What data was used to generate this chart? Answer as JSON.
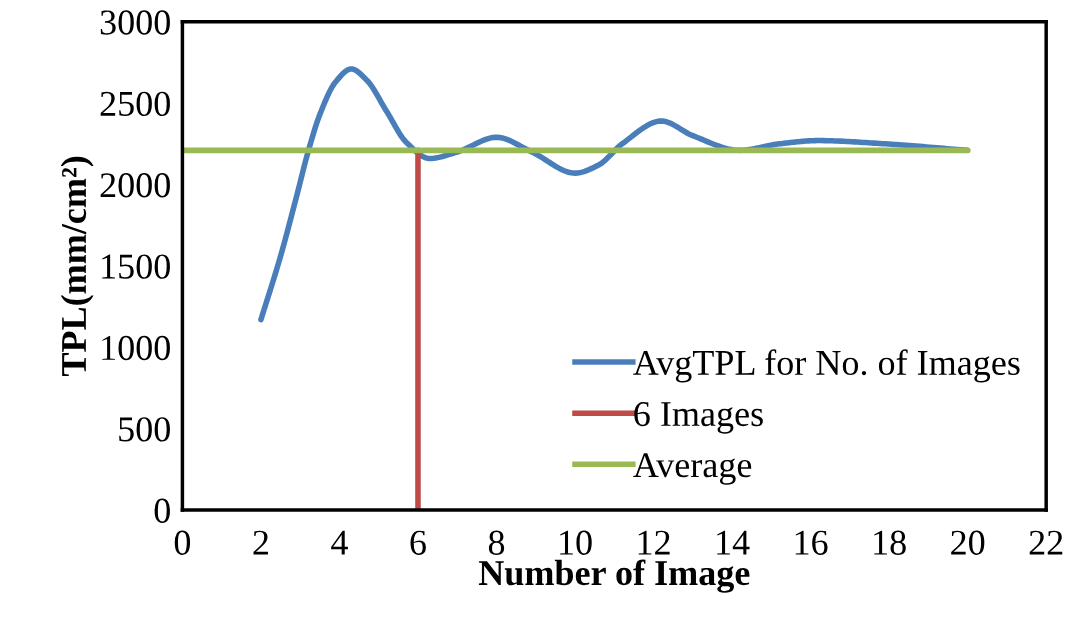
{
  "chart_data": {
    "type": "line",
    "xlabel": "Number of Image",
    "ylabel": "TPL(mm/cm²)",
    "xlim": [
      0,
      22
    ],
    "xticks": [
      0,
      2,
      4,
      6,
      8,
      10,
      12,
      14,
      16,
      18,
      20,
      22
    ],
    "ylim": [
      0,
      3000
    ],
    "yticks": [
      0,
      500,
      1000,
      1500,
      2000,
      2500,
      3000
    ],
    "grid": false,
    "legend": "bottom right",
    "marker": "none",
    "line_style": "solid",
    "series": [
      {
        "name": "AvgTPL for No. of Images",
        "color": "#4a7ebb",
        "x": [
          2,
          2.5,
          2.9,
          3.2,
          3.5,
          3.9,
          4.3,
          4.7,
          5.2,
          5.7,
          6.3,
          7.0,
          8.0,
          8.9,
          10.0,
          10.6,
          11.2,
          12.2,
          13.0,
          14.2,
          15.2,
          16.2,
          17.9,
          20
        ],
        "values": [
          1170,
          1560,
          1920,
          2200,
          2430,
          2630,
          2710,
          2640,
          2450,
          2260,
          2160,
          2200,
          2290,
          2200,
          2070,
          2120,
          2250,
          2390,
          2300,
          2210,
          2250,
          2270,
          2250,
          2210
        ]
      },
      {
        "name": "6 Images",
        "color": "#be4b48",
        "x": [
          6,
          6
        ],
        "values": [
          0,
          2210
        ]
      },
      {
        "name": "Average",
        "color": "#98b954",
        "x": [
          0,
          20
        ],
        "values": [
          2210,
          2210
        ]
      }
    ]
  }
}
